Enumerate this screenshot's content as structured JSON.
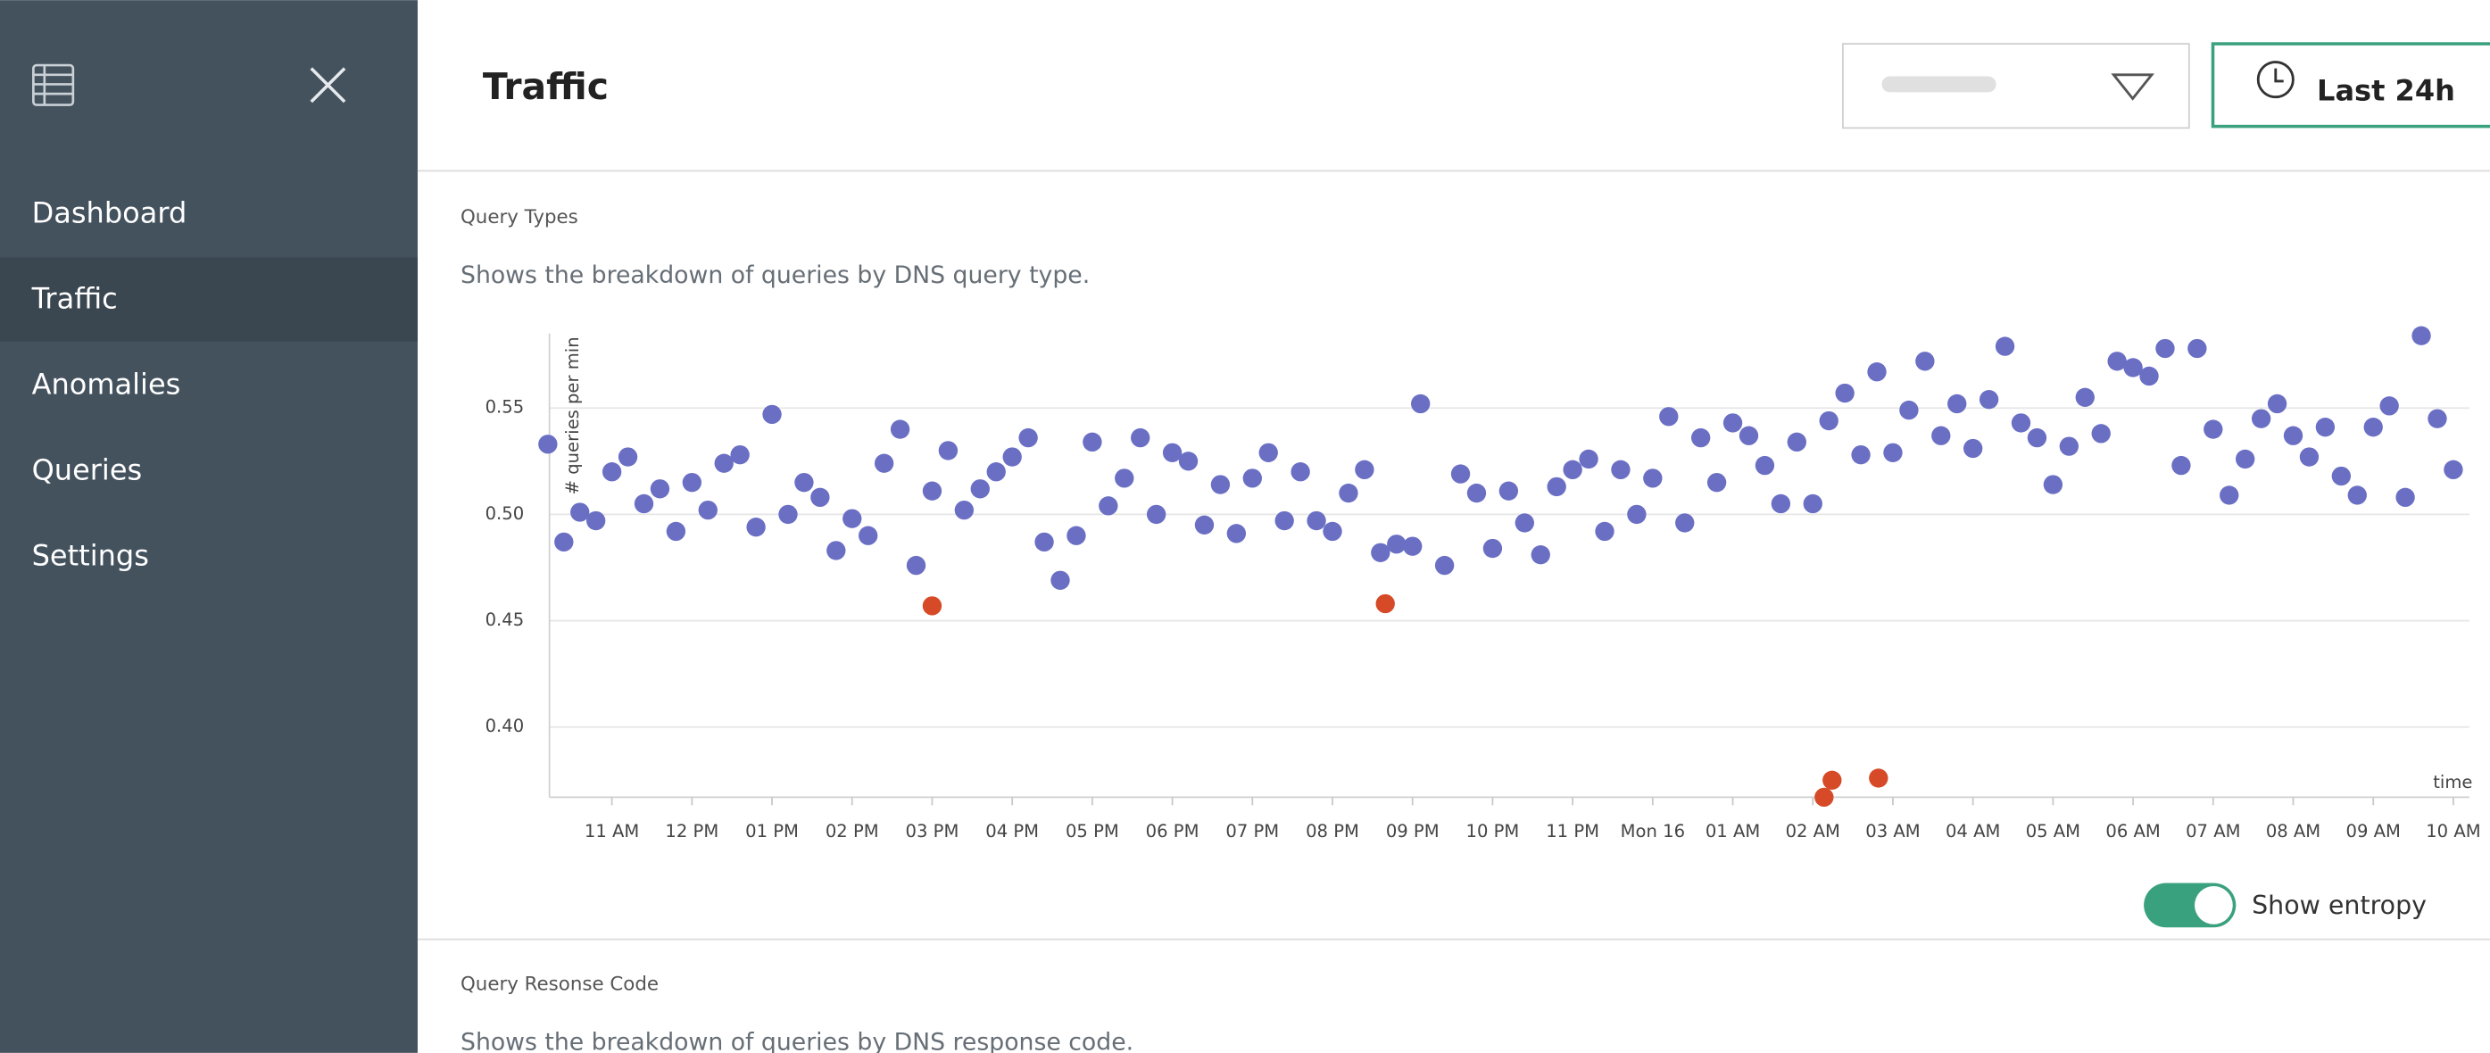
{
  "sidebar": {
    "nav": [
      "Dashboard",
      "Traffic",
      "Anomalies",
      "Queries",
      "Settings"
    ]
  },
  "header": {
    "title": "Traffic",
    "time_button": "Last 24h"
  },
  "sections": [
    {
      "title": "Query Types",
      "description": "Shows the breakdown of queries by DNS query type.",
      "toggle": "Show entropy"
    },
    {
      "title": "Query Resonse Code",
      "description": "Shows the breakdown of queries by DNS response code."
    }
  ],
  "chart_data": {
    "type": "scatter",
    "ylabel": "# queries per min",
    "xlabel": "time",
    "xlim": [
      10.22,
      34.2
    ],
    "ylim": [
      0.367,
      0.585
    ],
    "xticks": [
      {
        "value": 11,
        "label": "11 AM"
      },
      {
        "value": 12,
        "label": "12 PM"
      },
      {
        "value": 13,
        "label": "01 PM"
      },
      {
        "value": 14,
        "label": "02 PM"
      },
      {
        "value": 15,
        "label": "03 PM"
      },
      {
        "value": 16,
        "label": "04 PM"
      },
      {
        "value": 17,
        "label": "05 PM"
      },
      {
        "value": 18,
        "label": "06 PM"
      },
      {
        "value": 19,
        "label": "07 PM"
      },
      {
        "value": 20,
        "label": "08 PM"
      },
      {
        "value": 21,
        "label": "09 PM"
      },
      {
        "value": 22,
        "label": "10 PM"
      },
      {
        "value": 23,
        "label": "11 PM"
      },
      {
        "value": 24,
        "label": "Mon 16"
      },
      {
        "value": 25,
        "label": "01 AM"
      },
      {
        "value": 26,
        "label": "02 AM"
      },
      {
        "value": 27,
        "label": "03 AM"
      },
      {
        "value": 28,
        "label": "04 AM"
      },
      {
        "value": 29,
        "label": "05 AM"
      },
      {
        "value": 30,
        "label": "06 AM"
      },
      {
        "value": 31,
        "label": "07 AM"
      },
      {
        "value": 32,
        "label": "08 AM"
      },
      {
        "value": 33,
        "label": "09 AM"
      },
      {
        "value": 34,
        "label": "10 AM"
      }
    ],
    "yticks": [
      {
        "value": 0.4,
        "label": "0.40"
      },
      0.45,
      {
        "value": 0.5,
        "label": "0.50"
      },
      0.55
    ],
    "grid": true,
    "series": [
      {
        "color": "#6a6fc4",
        "x": [
          10.2,
          10.4,
          10.6,
          10.8,
          11.0,
          11.2,
          11.4,
          11.6,
          11.8,
          12.0,
          12.2,
          12.4,
          12.6,
          12.8,
          13.0,
          13.2,
          13.4,
          13.6,
          13.8,
          14.0,
          14.2,
          14.4,
          14.6,
          14.8,
          15.0,
          15.2,
          15.4,
          15.6,
          15.8,
          16.0,
          16.2,
          16.4,
          16.6,
          16.8,
          17.0,
          17.2,
          17.4,
          17.6,
          17.8,
          18.0,
          18.2,
          18.4,
          18.6,
          18.8,
          19.0,
          19.2,
          19.4,
          19.6,
          19.8,
          20.0,
          20.2,
          20.4,
          20.6,
          20.8,
          21.0,
          21.1,
          21.4,
          21.6,
          21.8,
          22.0,
          22.2,
          22.4,
          22.6,
          22.8,
          23.0,
          23.2,
          23.4,
          23.6,
          23.8,
          24.0,
          24.2,
          24.4,
          24.6,
          24.8,
          25.0,
          25.2,
          25.4,
          25.6,
          25.8,
          26.0,
          26.2,
          26.4,
          26.6,
          26.8,
          27.0,
          27.2,
          27.4,
          27.6,
          27.8,
          28.0,
          28.2,
          28.4,
          28.6,
          28.8,
          29.0,
          29.2,
          29.4,
          29.6,
          29.8,
          30.0,
          30.2,
          30.4,
          30.6,
          30.8,
          31.0,
          31.2,
          31.4,
          31.6,
          31.8,
          32.0,
          32.2,
          32.4,
          32.6,
          32.8,
          33.0,
          33.2,
          33.4,
          33.6,
          33.8,
          34.0
        ],
        "values": [
          0.533,
          0.487,
          0.501,
          0.497,
          0.52,
          0.527,
          0.505,
          0.512,
          0.492,
          0.515,
          0.502,
          0.524,
          0.528,
          0.494,
          0.547,
          0.5,
          0.515,
          0.508,
          0.483,
          0.498,
          0.49,
          0.524,
          0.54,
          0.476,
          0.511,
          0.53,
          0.502,
          0.512,
          0.52,
          0.527,
          0.536,
          0.487,
          0.469,
          0.49,
          0.534,
          0.504,
          0.517,
          0.536,
          0.5,
          0.529,
          0.525,
          0.495,
          0.514,
          0.491,
          0.517,
          0.529,
          0.497,
          0.52,
          0.497,
          0.492,
          0.51,
          0.521,
          0.482,
          0.486,
          0.485,
          0.552,
          0.476,
          0.519,
          0.51,
          0.484,
          0.511,
          0.496,
          0.481,
          0.513,
          0.521,
          0.526,
          0.492,
          0.521,
          0.5,
          0.517,
          0.546,
          0.496,
          0.536,
          0.515,
          0.543,
          0.537,
          0.523,
          0.505,
          0.534,
          0.505,
          0.544,
          0.557,
          0.528,
          0.567,
          0.529,
          0.549,
          0.572,
          0.537,
          0.552,
          0.531,
          0.554,
          0.579,
          0.543,
          0.536,
          0.514,
          0.532,
          0.555,
          0.538,
          0.572,
          0.569,
          0.565,
          0.578,
          0.523,
          0.578,
          0.54,
          0.509,
          0.526,
          0.545,
          0.552,
          0.537,
          0.527,
          0.541,
          0.518,
          0.509,
          0.541,
          0.551,
          0.508,
          0.584,
          0.545,
          0.521
        ]
      },
      {
        "color": "#d64a28",
        "x": [
          15.0,
          20.66,
          26.14,
          26.24,
          26.82
        ],
        "values": [
          0.457,
          0.458,
          0.367,
          0.375,
          0.376
        ]
      }
    ]
  }
}
